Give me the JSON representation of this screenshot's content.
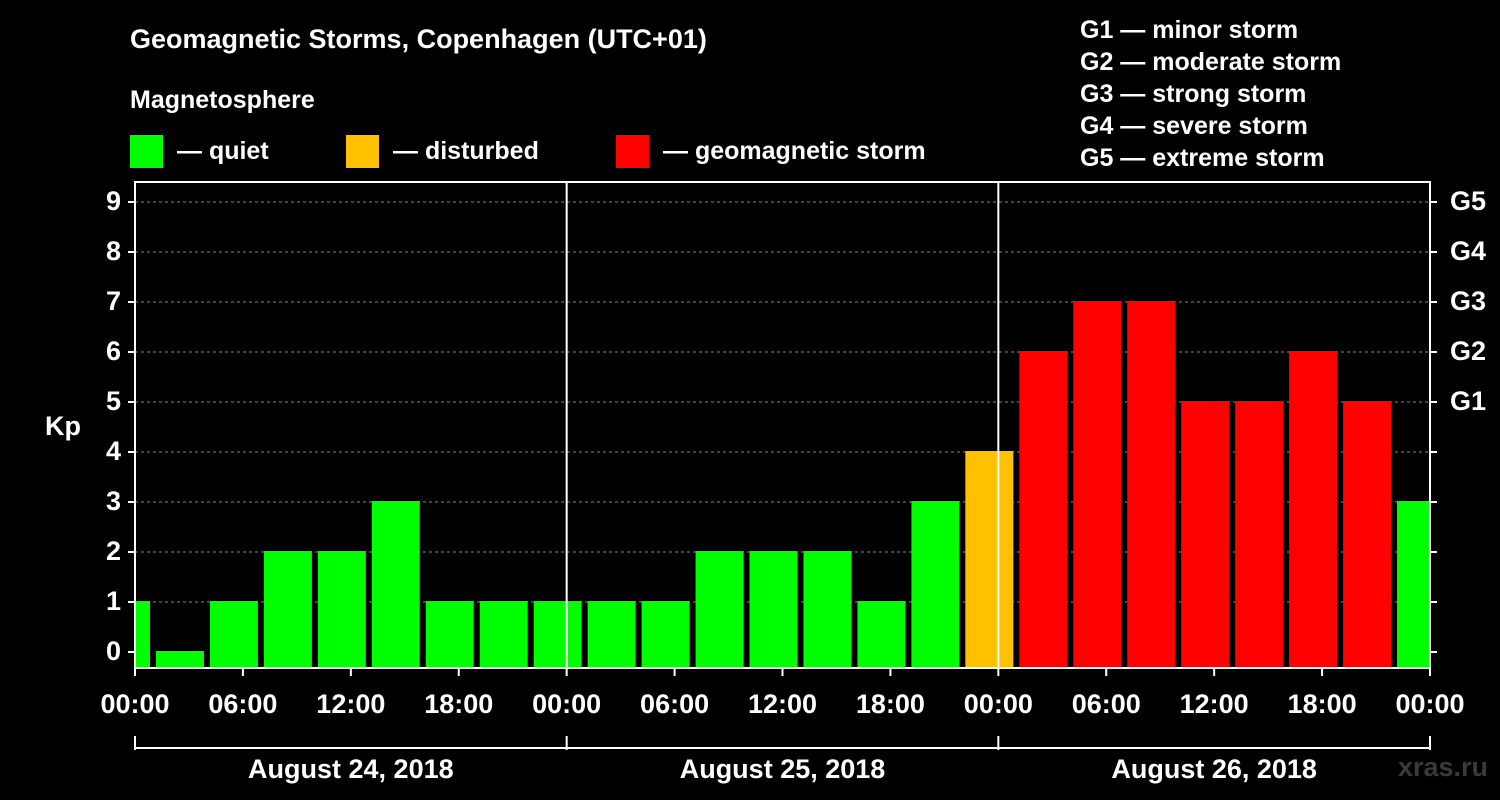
{
  "header": {
    "title": "Geomagnetic Storms, Copenhagen (UTC+01)",
    "legend_title": "Magnetosphere",
    "legend": [
      {
        "label": "— quiet",
        "color": "#00ff00"
      },
      {
        "label": "— disturbed",
        "color": "#ffc000"
      },
      {
        "label": "— geomagnetic storm",
        "color": "#ff0000"
      }
    ],
    "storm_scale": [
      "G1 — minor storm",
      "G2 — moderate storm",
      "G3 — strong storm",
      "G4 — severe storm",
      "G5 — extreme storm"
    ]
  },
  "watermark": "xras.ru",
  "chart_data": {
    "type": "bar",
    "ylabel": "Kp",
    "ylim": [
      0,
      9
    ],
    "yticks": [
      0,
      1,
      2,
      3,
      4,
      5,
      6,
      7,
      8,
      9
    ],
    "right_ticks": [
      {
        "value": 5,
        "label": "G1"
      },
      {
        "value": 6,
        "label": "G2"
      },
      {
        "value": 7,
        "label": "G3"
      },
      {
        "value": 8,
        "label": "G4"
      },
      {
        "value": 9,
        "label": "G5"
      }
    ],
    "x_tick_labels": [
      "00:00",
      "06:00",
      "12:00",
      "18:00",
      "00:00",
      "06:00",
      "12:00",
      "18:00",
      "00:00",
      "06:00",
      "12:00",
      "18:00",
      "00:00"
    ],
    "day_labels": [
      "August 24, 2018",
      "August 25, 2018",
      "August 26, 2018"
    ],
    "colors": {
      "quiet": "#00ff00",
      "disturbed": "#ffc000",
      "storm": "#ff0000"
    },
    "series": [
      {
        "values": [
          {
            "start": "2018-08-24 00:00",
            "end": "2018-08-24 01:00",
            "kp": 1,
            "status": "quiet"
          },
          {
            "start": "2018-08-24 01:00",
            "end": "2018-08-24 04:00",
            "kp": 0,
            "status": "quiet"
          },
          {
            "start": "2018-08-24 04:00",
            "end": "2018-08-24 07:00",
            "kp": 1,
            "status": "quiet"
          },
          {
            "start": "2018-08-24 07:00",
            "end": "2018-08-24 10:00",
            "kp": 2,
            "status": "quiet"
          },
          {
            "start": "2018-08-24 10:00",
            "end": "2018-08-24 13:00",
            "kp": 2,
            "status": "quiet"
          },
          {
            "start": "2018-08-24 13:00",
            "end": "2018-08-24 16:00",
            "kp": 3,
            "status": "quiet"
          },
          {
            "start": "2018-08-24 16:00",
            "end": "2018-08-24 19:00",
            "kp": 1,
            "status": "quiet"
          },
          {
            "start": "2018-08-24 19:00",
            "end": "2018-08-24 22:00",
            "kp": 1,
            "status": "quiet"
          },
          {
            "start": "2018-08-24 22:00",
            "end": "2018-08-25 01:00",
            "kp": 1,
            "status": "quiet"
          },
          {
            "start": "2018-08-25 01:00",
            "end": "2018-08-25 04:00",
            "kp": 1,
            "status": "quiet"
          },
          {
            "start": "2018-08-25 04:00",
            "end": "2018-08-25 07:00",
            "kp": 1,
            "status": "quiet"
          },
          {
            "start": "2018-08-25 07:00",
            "end": "2018-08-25 10:00",
            "kp": 2,
            "status": "quiet"
          },
          {
            "start": "2018-08-25 10:00",
            "end": "2018-08-25 13:00",
            "kp": 2,
            "status": "quiet"
          },
          {
            "start": "2018-08-25 13:00",
            "end": "2018-08-25 16:00",
            "kp": 2,
            "status": "quiet"
          },
          {
            "start": "2018-08-25 16:00",
            "end": "2018-08-25 19:00",
            "kp": 1,
            "status": "quiet"
          },
          {
            "start": "2018-08-25 19:00",
            "end": "2018-08-25 22:00",
            "kp": 3,
            "status": "quiet"
          },
          {
            "start": "2018-08-25 22:00",
            "end": "2018-08-26 01:00",
            "kp": 4,
            "status": "disturbed"
          },
          {
            "start": "2018-08-26 01:00",
            "end": "2018-08-26 04:00",
            "kp": 6,
            "status": "storm"
          },
          {
            "start": "2018-08-26 04:00",
            "end": "2018-08-26 07:00",
            "kp": 7,
            "status": "storm"
          },
          {
            "start": "2018-08-26 07:00",
            "end": "2018-08-26 10:00",
            "kp": 7,
            "status": "storm"
          },
          {
            "start": "2018-08-26 10:00",
            "end": "2018-08-26 13:00",
            "kp": 5,
            "status": "storm"
          },
          {
            "start": "2018-08-26 13:00",
            "end": "2018-08-26 16:00",
            "kp": 5,
            "status": "storm"
          },
          {
            "start": "2018-08-26 16:00",
            "end": "2018-08-26 19:00",
            "kp": 6,
            "status": "storm"
          },
          {
            "start": "2018-08-26 19:00",
            "end": "2018-08-26 22:00",
            "kp": 5,
            "status": "storm"
          },
          {
            "start": "2018-08-26 22:00",
            "end": "2018-08-27 00:00",
            "kp": 3,
            "status": "quiet"
          }
        ]
      }
    ]
  }
}
